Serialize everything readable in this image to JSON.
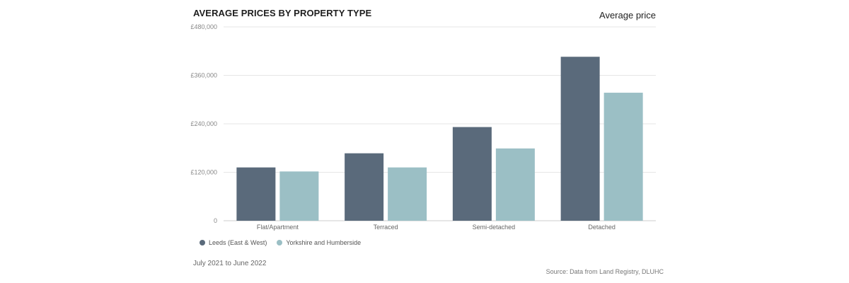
{
  "header": {
    "title": "AVERAGE PRICES BY PROPERTY TYPE",
    "metric": "Average price"
  },
  "footer": {
    "period": "July 2021 to June 2022",
    "source": "Source: Data from Land Registry, DLUHC"
  },
  "colors": {
    "series1": "#5a6a7b",
    "series2": "#9bbfc5",
    "grid": "#e6e6e6",
    "axis": "#cccccc"
  },
  "chart_data": {
    "type": "bar",
    "title": "AVERAGE PRICES BY PROPERTY TYPE",
    "ylabel": "Average price",
    "xlabel": "",
    "categories": [
      "Flat/Apartment",
      "Terraced",
      "Semi-detached",
      "Detached"
    ],
    "ylim": [
      0,
      480000
    ],
    "yticks": [
      0,
      120000,
      240000,
      360000,
      480000
    ],
    "ytick_labels": [
      "0",
      "£120,000",
      "£240,000",
      "£360,000",
      "£480,000"
    ],
    "grid": true,
    "legend_position": "bottom-left",
    "series": [
      {
        "name": "Leeds (East & West)",
        "values": [
          132000,
          167000,
          232000,
          406000
        ]
      },
      {
        "name": "Yorkshire and Humberside",
        "values": [
          122000,
          132000,
          179000,
          317000
        ]
      }
    ]
  }
}
